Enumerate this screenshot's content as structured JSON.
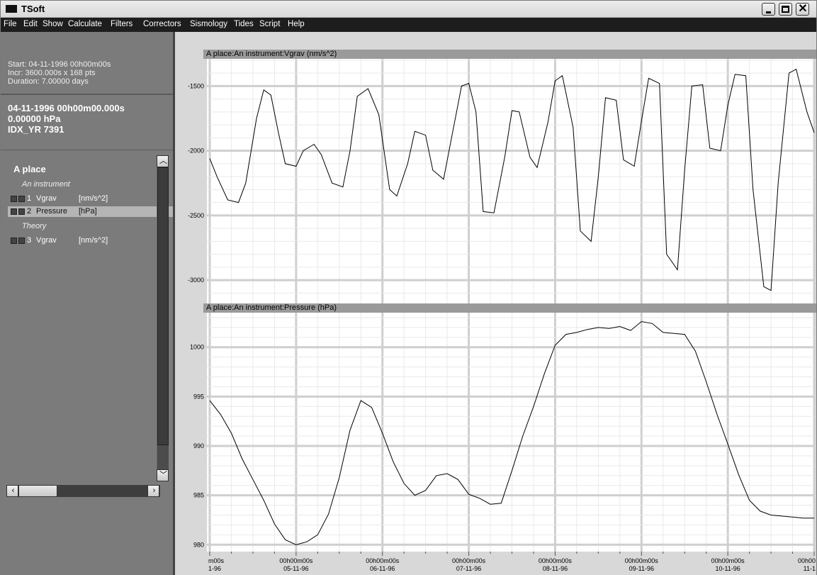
{
  "window": {
    "title": "TSoft"
  },
  "menu": [
    "File",
    "Edit",
    "Show",
    "Calculate",
    "Filters",
    "Correctors",
    "Sismology",
    "Tides",
    "Script",
    "Help"
  ],
  "info": {
    "start": "Start: 04-11-1996 00h00m00s",
    "incr": "Incr: 3600.000s x 168 pts",
    "duration": "Duration: 7.00000 days"
  },
  "cursor": {
    "time": "04-11-1996 00h00m00.000s",
    "value": "0.00000 hPa",
    "index": "IDX_YR 7391"
  },
  "tree": {
    "station": "A place",
    "groups": [
      {
        "label": "An instrument",
        "channels": [
          {
            "num": "1",
            "name": "Vgrav",
            "unit": "[nm/s^2]",
            "selected": false
          },
          {
            "num": "2",
            "name": "Pressure",
            "unit": "[hPa]",
            "selected": true
          }
        ]
      },
      {
        "label": "Theory",
        "channels": [
          {
            "num": "3",
            "name": "Vgrav",
            "unit": "[nm/s^2]",
            "selected": false
          }
        ]
      }
    ]
  },
  "chart_data": [
    {
      "type": "line",
      "title": "A place:An instrument:Vgrav (nm/s^2)",
      "ylim": [
        -3180,
        -1290
      ],
      "yticks": [
        "-1500",
        "-2000",
        "-2500",
        "-3000"
      ],
      "ytick_values": [
        -1500,
        -2000,
        -2500,
        -3000
      ],
      "x_hours": [
        0,
        2,
        5,
        8,
        10,
        13,
        15,
        17,
        19,
        21,
        24,
        26,
        29,
        31,
        34,
        37,
        39,
        41,
        44,
        47,
        50,
        52,
        55,
        57,
        60,
        62,
        65,
        67,
        70,
        72,
        74,
        76,
        79,
        82,
        84,
        86,
        89,
        91,
        94,
        96,
        98,
        101,
        103,
        106,
        108,
        110,
        113,
        115,
        118,
        120,
        122,
        125,
        127,
        130,
        132,
        134,
        137,
        139,
        142,
        144,
        146,
        149,
        151,
        154,
        156,
        158,
        161,
        163,
        166,
        168
      ],
      "y": [
        -2060,
        -2200,
        -2380,
        -2400,
        -2250,
        -1750,
        -1530,
        -1570,
        -1850,
        -2100,
        -2120,
        -2000,
        -1950,
        -2030,
        -2250,
        -2280,
        -2000,
        -1580,
        -1520,
        -1720,
        -2300,
        -2350,
        -2100,
        -1850,
        -1880,
        -2150,
        -2220,
        -1930,
        -1500,
        -1480,
        -1700,
        -2470,
        -2480,
        -2050,
        -1690,
        -1700,
        -2050,
        -2130,
        -1780,
        -1460,
        -1420,
        -1820,
        -2620,
        -2700,
        -2200,
        -1590,
        -1610,
        -2070,
        -2120,
        -1770,
        -1440,
        -1480,
        -2800,
        -2920,
        -2150,
        -1500,
        -1490,
        -1980,
        -2000,
        -1650,
        -1410,
        -1420,
        -2300,
        -3050,
        -3080,
        -2250,
        -1400,
        -1370,
        -1700,
        -1860
      ]
    },
    {
      "type": "line",
      "title": "A place:An instrument:Pressure (hPa)",
      "ylim": [
        979.3,
        1003.5
      ],
      "yticks": [
        "1000",
        "995",
        "990",
        "985",
        "980"
      ],
      "ytick_values": [
        1000,
        995,
        990,
        985,
        980
      ],
      "x_hours": [
        0,
        3,
        6,
        9,
        12,
        15,
        18,
        21,
        24,
        27,
        30,
        33,
        36,
        39,
        42,
        45,
        48,
        51,
        54,
        57,
        60,
        63,
        66,
        69,
        72,
        75,
        78,
        81,
        84,
        87,
        90,
        93,
        96,
        99,
        102,
        105,
        108,
        111,
        114,
        117,
        120,
        123,
        126,
        129,
        132,
        135,
        138,
        141,
        144,
        147,
        150,
        153,
        156,
        159,
        162,
        165,
        168
      ],
      "y": [
        994.6,
        993.2,
        991.3,
        988.7,
        986.6,
        984.5,
        982.1,
        980.5,
        980.0,
        980.3,
        981.0,
        983.1,
        986.8,
        991.6,
        994.6,
        993.9,
        991.3,
        988.4,
        986.2,
        985.0,
        985.5,
        987.0,
        987.2,
        986.6,
        985.1,
        984.7,
        984.1,
        984.2,
        987.5,
        991.0,
        994.0,
        997.3,
        1000.2,
        1001.3,
        1001.5,
        1001.8,
        1002.0,
        1001.9,
        1002.1,
        1001.7,
        1002.6,
        1002.4,
        1001.5,
        1001.4,
        1001.3,
        999.6,
        996.5,
        993.2,
        990.2,
        987.1,
        984.5,
        983.4,
        983.0,
        982.9,
        982.8,
        982.7,
        982.7
      ]
    }
  ],
  "xaxis": {
    "labels": [
      {
        "time": "m00s",
        "date": "1-96"
      },
      {
        "time": "00h00m00s",
        "date": "05-11-96"
      },
      {
        "time": "00h00m00s",
        "date": "06-11-96"
      },
      {
        "time": "00h00m00s",
        "date": "07-11-96"
      },
      {
        "time": "00h00m00s",
        "date": "08-11-96"
      },
      {
        "time": "00h00m00s",
        "date": "09-11-96"
      },
      {
        "time": "00h00m00s",
        "date": "10-11-96"
      },
      {
        "time": "00h00",
        "date": "11-1"
      }
    ]
  }
}
